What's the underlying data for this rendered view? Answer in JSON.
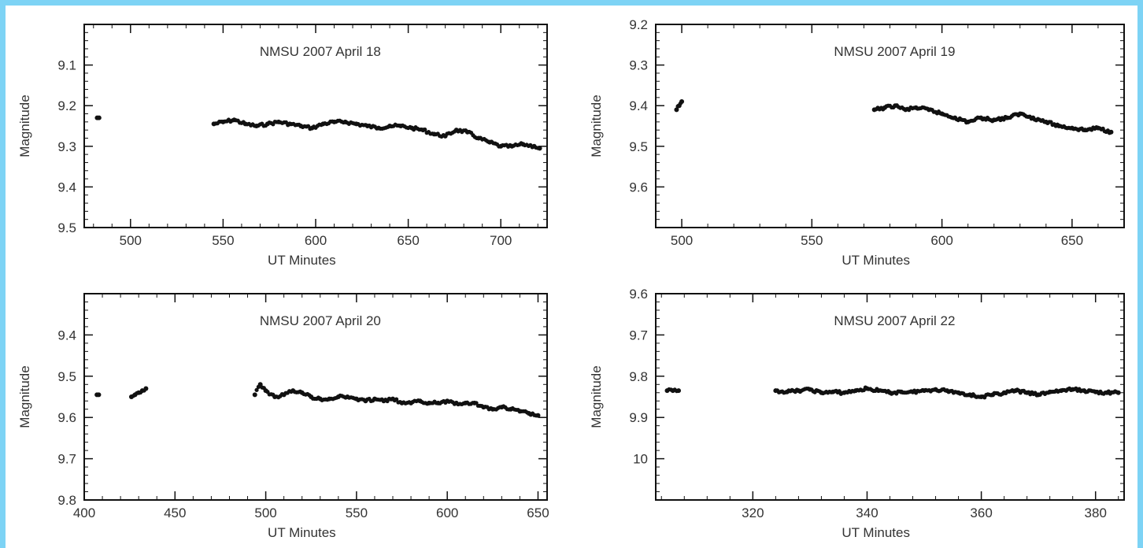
{
  "colors": {
    "border": "#7dd3f5",
    "background": "#ffffff",
    "ink": "#111111",
    "text": "#333333"
  },
  "chart_data": [
    {
      "type": "scatter",
      "title": "NMSU 2007 April 18",
      "xlabel": "UT Minutes",
      "ylabel": "Magnitude",
      "xlim": [
        475,
        725
      ],
      "ylim": [
        9.0,
        9.5
      ],
      "y_inverted": true,
      "xticks": [
        500,
        550,
        600,
        650,
        700
      ],
      "xtick_labels": [
        "500",
        "550",
        "600",
        "650",
        "700"
      ],
      "yticks": [
        9.1,
        9.2,
        9.3,
        9.4,
        9.5
      ],
      "ytick_labels": [
        "9.1",
        "9.2",
        "9.3",
        "9.4",
        "9.5"
      ],
      "segments": [
        {
          "x": [
            482,
            483
          ],
          "y": [
            9.23,
            9.23
          ]
        },
        {
          "x": [
            545,
            550,
            556,
            562,
            568,
            574,
            580,
            586,
            592,
            598,
            604,
            610,
            616,
            622,
            628,
            634,
            640,
            646,
            652,
            658,
            664,
            670,
            676,
            682,
            688,
            694,
            700,
            706,
            712,
            718,
            721
          ],
          "y": [
            9.245,
            9.24,
            9.235,
            9.245,
            9.25,
            9.245,
            9.24,
            9.245,
            9.25,
            9.255,
            9.245,
            9.24,
            9.24,
            9.245,
            9.25,
            9.255,
            9.25,
            9.25,
            9.255,
            9.26,
            9.27,
            9.275,
            9.26,
            9.265,
            9.28,
            9.29,
            9.3,
            9.3,
            9.295,
            9.3,
            9.305
          ]
        }
      ]
    },
    {
      "type": "scatter",
      "title": "NMSU 2007 April 19",
      "xlabel": "UT Minutes",
      "ylabel": "Magnitude",
      "xlim": [
        490,
        670
      ],
      "ylim": [
        9.2,
        9.7
      ],
      "y_inverted": true,
      "xticks": [
        500,
        550,
        600,
        650
      ],
      "xtick_labels": [
        "500",
        "550",
        "600",
        "650"
      ],
      "yticks": [
        9.2,
        9.3,
        9.4,
        9.5,
        9.6
      ],
      "ytick_labels": [
        "9.2",
        "9.3",
        "9.4",
        "9.5",
        "9.6"
      ],
      "segments": [
        {
          "x": [
            498,
            499,
            500
          ],
          "y": [
            9.41,
            9.4,
            9.39
          ]
        },
        {
          "x": [
            574,
            578,
            582,
            586,
            590,
            595,
            600,
            605,
            610,
            615,
            620,
            625,
            630,
            635,
            640,
            645,
            650,
            655,
            660,
            665
          ],
          "y": [
            9.41,
            9.405,
            9.4,
            9.41,
            9.405,
            9.41,
            9.42,
            9.43,
            9.44,
            9.43,
            9.435,
            9.43,
            9.42,
            9.43,
            9.44,
            9.45,
            9.455,
            9.46,
            9.455,
            9.465
          ]
        }
      ]
    },
    {
      "type": "scatter",
      "title": "NMSU 2007 April 20",
      "xlabel": "UT Minutes",
      "ylabel": "Magnitude",
      "xlim": [
        400,
        655
      ],
      "ylim": [
        9.3,
        9.8
      ],
      "y_inverted": true,
      "xticks": [
        400,
        450,
        500,
        550,
        600,
        650
      ],
      "xtick_labels": [
        "400",
        "450",
        "500",
        "550",
        "600",
        "650"
      ],
      "yticks": [
        9.4,
        9.5,
        9.6,
        9.7,
        9.8
      ],
      "ytick_labels": [
        "9.4",
        "9.5",
        "9.6",
        "9.7",
        "9.8"
      ],
      "segments": [
        {
          "x": [
            407,
            408
          ],
          "y": [
            9.545,
            9.545
          ]
        },
        {
          "x": [
            426,
            428,
            430,
            432,
            434
          ],
          "y": [
            9.55,
            9.545,
            9.54,
            9.535,
            9.53
          ]
        },
        {
          "x": [
            494,
            497,
            500,
            505,
            510,
            515,
            520,
            525,
            530,
            535,
            540,
            545,
            550,
            555,
            560,
            565,
            570,
            575,
            580,
            585,
            590,
            595,
            600,
            605,
            610,
            615,
            620,
            625,
            630,
            635,
            640,
            645,
            650
          ],
          "y": [
            9.545,
            9.52,
            9.535,
            9.55,
            9.545,
            9.535,
            9.54,
            9.55,
            9.555,
            9.555,
            9.55,
            9.55,
            9.555,
            9.56,
            9.555,
            9.56,
            9.555,
            9.565,
            9.565,
            9.56,
            9.565,
            9.565,
            9.56,
            9.565,
            9.565,
            9.565,
            9.575,
            9.58,
            9.575,
            9.58,
            9.585,
            9.59,
            9.595
          ]
        }
      ]
    },
    {
      "type": "scatter",
      "title": "NMSU 2007 April 22",
      "xlabel": "UT Minutes",
      "ylabel": "Magnitude",
      "xlim": [
        303,
        385
      ],
      "ylim": [
        9.6,
        10.1
      ],
      "y_inverted": true,
      "xticks": [
        320,
        340,
        360,
        380
      ],
      "xtick_labels": [
        "320",
        "340",
        "360",
        "380"
      ],
      "yticks": [
        9.6,
        9.7,
        9.8,
        9.9,
        10.0
      ],
      "ytick_labels": [
        "9.6",
        "9.7",
        "9.8",
        "9.9",
        "10"
      ],
      "segments": [
        {
          "x": [
            305,
            306,
            307
          ],
          "y": [
            9.835,
            9.835,
            9.835
          ]
        },
        {
          "x": [
            324,
            326,
            328,
            330,
            332,
            334,
            336,
            338,
            340,
            342,
            344,
            346,
            348,
            350,
            352,
            354,
            356,
            358,
            360,
            362,
            364,
            366,
            368,
            370,
            372,
            374,
            376,
            378,
            380,
            382,
            384
          ],
          "y": [
            9.835,
            9.838,
            9.835,
            9.832,
            9.84,
            9.838,
            9.84,
            9.835,
            9.83,
            9.835,
            9.84,
            9.838,
            9.838,
            9.835,
            9.832,
            9.835,
            9.84,
            9.845,
            9.85,
            9.845,
            9.84,
            9.835,
            9.84,
            9.845,
            9.838,
            9.835,
            9.832,
            9.835,
            9.838,
            9.84,
            9.84
          ]
        }
      ]
    }
  ]
}
